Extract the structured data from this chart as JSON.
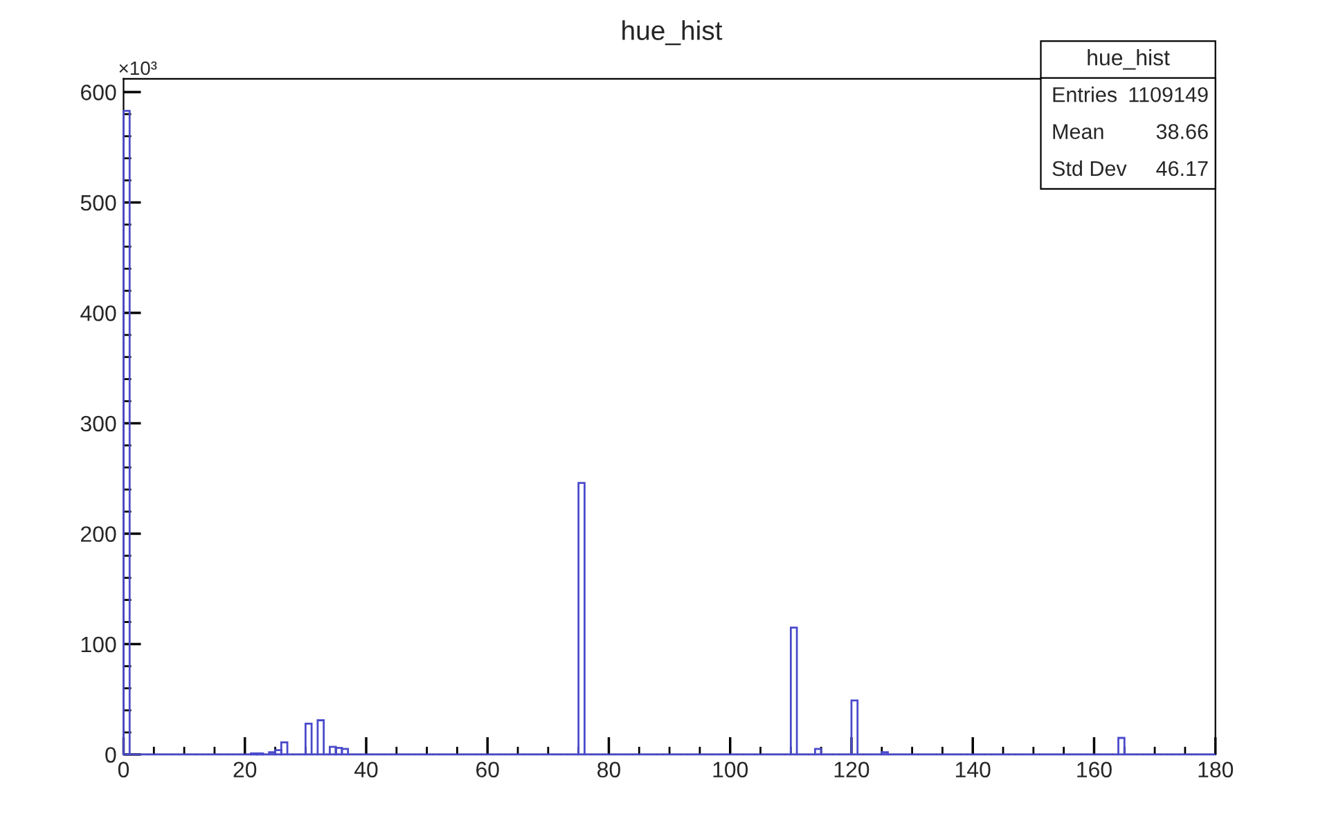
{
  "chart_data": {
    "type": "histogram",
    "title": "hue_hist",
    "ylabel": "×10³",
    "bins": [
      0,
      1,
      2,
      3,
      4,
      5,
      6,
      7,
      8,
      9,
      10,
      11,
      12,
      13,
      14,
      15,
      16,
      17,
      18,
      19,
      20,
      21,
      22,
      23,
      24,
      25,
      26,
      27,
      28,
      29,
      30,
      31,
      32,
      33,
      34,
      35,
      36,
      37,
      38,
      39,
      40,
      41,
      42,
      43,
      44,
      45,
      46,
      47,
      48,
      49,
      50,
      51,
      52,
      53,
      54,
      55,
      56,
      57,
      58,
      59,
      60,
      61,
      62,
      63,
      64,
      65,
      66,
      67,
      68,
      69,
      70,
      71,
      72,
      73,
      74,
      75,
      76,
      77,
      78,
      79,
      80,
      81,
      82,
      83,
      84,
      85,
      86,
      87,
      88,
      89,
      90,
      91,
      92,
      93,
      94,
      95,
      96,
      97,
      98,
      99,
      100,
      101,
      102,
      103,
      104,
      105,
      106,
      107,
      108,
      109,
      110,
      111,
      112,
      113,
      114,
      115,
      116,
      117,
      118,
      119,
      120,
      121,
      122,
      123,
      124,
      125,
      126,
      127,
      128,
      129,
      130,
      131,
      132,
      133,
      134,
      135,
      136,
      137,
      138,
      139,
      140,
      141,
      142,
      143,
      144,
      145,
      146,
      147,
      148,
      149,
      150,
      151,
      152,
      153,
      154,
      155,
      156,
      157,
      158,
      159,
      160,
      161,
      162,
      163,
      164,
      165,
      166,
      167,
      168,
      169,
      170,
      171,
      172,
      173,
      174,
      175,
      176,
      177,
      178,
      179,
      180
    ],
    "values": [
      583,
      0,
      0,
      0,
      0,
      0,
      0,
      0,
      0,
      0,
      0,
      0,
      0,
      0,
      0,
      0,
      0,
      0,
      0,
      0,
      0,
      1,
      1,
      0,
      2,
      4,
      11,
      0,
      0,
      0,
      28,
      0,
      31,
      0,
      7,
      6,
      5,
      0,
      0,
      0,
      0,
      0,
      0,
      0,
      0,
      0,
      0,
      0,
      0,
      0,
      0,
      0,
      0,
      0,
      0,
      0,
      0,
      0,
      0,
      0,
      0,
      0,
      0,
      0,
      0,
      0,
      0,
      0,
      0,
      0,
      0,
      0,
      0,
      0,
      0,
      246,
      0,
      0,
      0,
      0,
      0,
      0,
      0,
      0,
      0,
      0,
      0,
      0,
      0,
      0,
      0,
      0,
      0,
      0,
      0,
      0,
      0,
      0,
      0,
      0,
      0,
      0,
      0,
      0,
      0,
      0,
      0,
      0,
      0,
      0,
      115,
      0,
      0,
      0,
      5,
      0,
      0,
      0,
      0,
      0,
      49,
      0,
      0,
      0,
      0,
      2,
      0,
      0,
      0,
      0,
      0,
      0,
      0,
      0,
      0,
      0,
      0,
      0,
      0,
      0,
      0,
      0,
      0,
      0,
      0,
      0,
      0,
      0,
      0,
      0,
      0,
      0,
      0,
      0,
      0,
      0,
      0,
      0,
      0,
      0,
      0,
      0,
      0,
      0,
      15,
      0,
      0,
      0,
      0,
      0,
      0,
      0,
      0,
      0,
      0,
      0,
      0,
      0,
      0,
      0
    ],
    "color": "#4a4acb",
    "xlim": [
      0,
      180
    ],
    "ylim": [
      0,
      612
    ],
    "xticks": [
      0,
      20,
      40,
      60,
      80,
      100,
      120,
      140,
      160,
      180
    ],
    "yticks": [
      0,
      100,
      200,
      300,
      400,
      500,
      600
    ],
    "grid": false,
    "legend": false,
    "annotations": [
      "hue_hist",
      "Entries",
      "1109149",
      "Mean",
      "38.66",
      "Std Dev",
      "46.17"
    ]
  }
}
